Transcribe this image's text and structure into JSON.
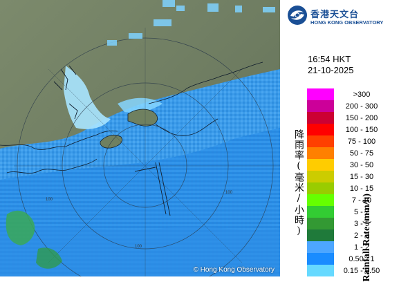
{
  "map": {
    "copyright": "© Hong Kong Observatory",
    "range_labels": [
      "100",
      "100",
      "100"
    ]
  },
  "logo": {
    "name_zh": "香港天文台",
    "name_en": "HONG KONG OBSERVATORY"
  },
  "timestamp": {
    "time": "16:54 HKT",
    "date": "21-10-2025"
  },
  "legend": {
    "title_zh": "降雨率(毫米/小時)",
    "title_en": "Rainfall Rate (mm/h)",
    "items": [
      {
        "label": ">300",
        "color": "#ff00ff"
      },
      {
        "label": "200 - 300",
        "color": "#cc0099"
      },
      {
        "label": "150 - 200",
        "color": "#cc0033"
      },
      {
        "label": "100 - 150",
        "color": "#ff0000"
      },
      {
        "label": "75 - 100",
        "color": "#ff4000"
      },
      {
        "label": "50 - 75",
        "color": "#ff8000"
      },
      {
        "label": "30 - 50",
        "color": "#ffcc00"
      },
      {
        "label": "15 - 30",
        "color": "#cccc00"
      },
      {
        "label": "10 - 15",
        "color": "#99cc00"
      },
      {
        "label": "7 - 10",
        "color": "#66ff00"
      },
      {
        "label": "5 - 7",
        "color": "#33cc33"
      },
      {
        "label": "3 - 5",
        "color": "#339933"
      },
      {
        "label": "2 - 3",
        "color": "#1f7a3a"
      },
      {
        "label": "1 - 2",
        "color": "#4da6ff"
      },
      {
        "label": "0.50 - 1",
        "color": "#1a8cff"
      },
      {
        "label": "0.15 - 0.50",
        "color": "#66d9ff"
      }
    ]
  }
}
